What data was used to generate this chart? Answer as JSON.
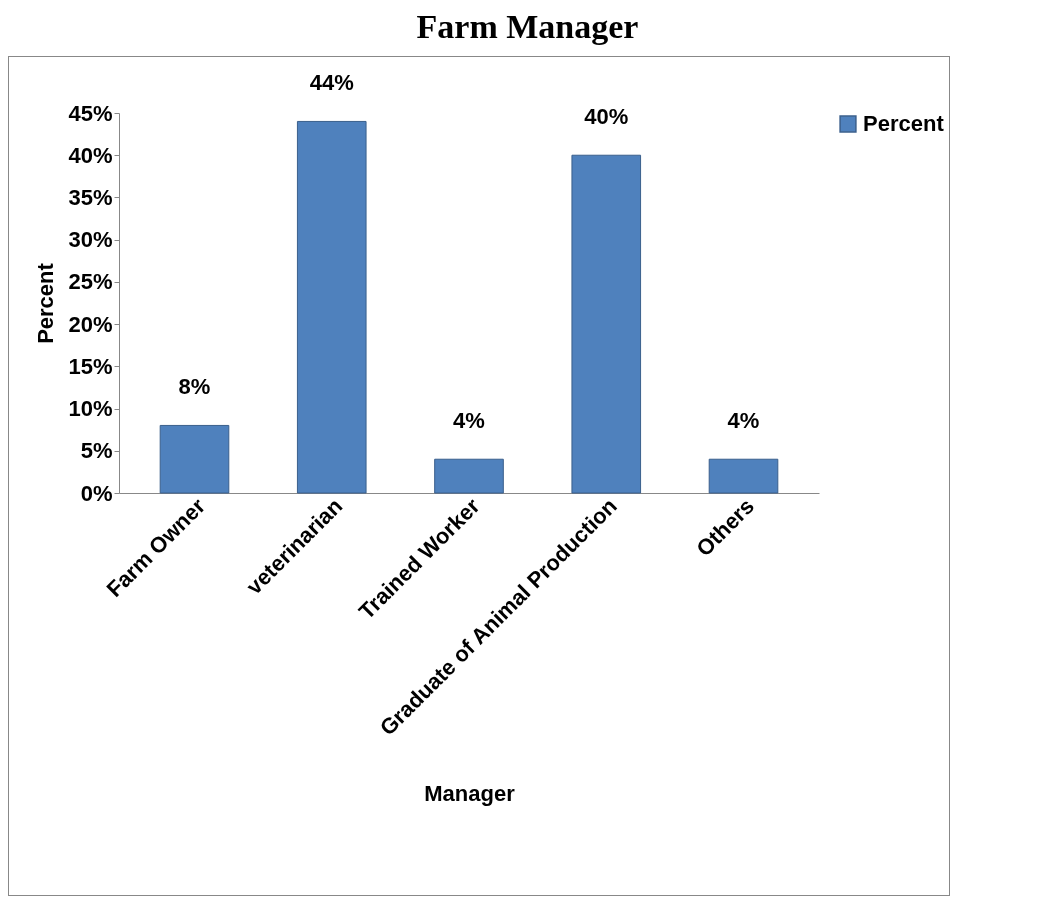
{
  "chart_data": {
    "type": "bar",
    "title": "Farm Manager",
    "xlabel": "Manager",
    "ylabel": "Percent",
    "categories": [
      "Farm Owner",
      "veterinarian",
      "Trained Worker",
      "Graduate of Animal Production",
      "Others"
    ],
    "series": [
      {
        "name": "Percent",
        "color": "#4f81bd",
        "values": [
          8,
          44,
          4,
          40,
          4
        ],
        "value_labels": [
          "8%",
          "44%",
          "4%",
          "40%",
          "4%"
        ]
      }
    ],
    "ylim": [
      0,
      45
    ],
    "yticks": [
      {
        "value": 0,
        "label": "0%"
      },
      {
        "value": 5,
        "label": "5%"
      },
      {
        "value": 10,
        "label": "10%"
      },
      {
        "value": 15,
        "label": "15%"
      },
      {
        "value": 20,
        "label": "20%"
      },
      {
        "value": 25,
        "label": "25%"
      },
      {
        "value": 30,
        "label": "30%"
      },
      {
        "value": 35,
        "label": "35%"
      },
      {
        "value": 40,
        "label": "40%"
      },
      {
        "value": 45,
        "label": "45%"
      }
    ],
    "legend": "right",
    "grid": false
  }
}
